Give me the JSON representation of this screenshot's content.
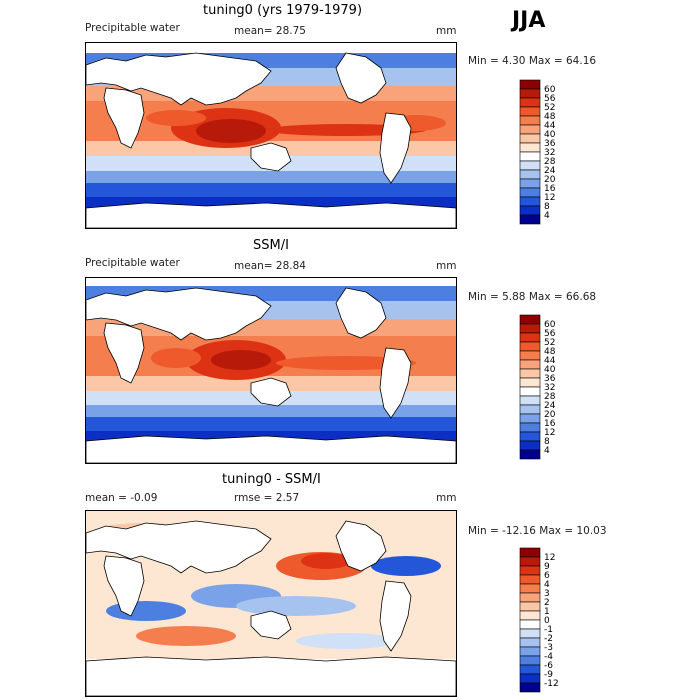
{
  "season": "JJA",
  "panels": [
    {
      "title": "tuning0 (yrs 1979-1979)",
      "left_text": "Precipitable water",
      "mid_text": "mean=  28.75",
      "units": "mm",
      "minmax": "Min =    4.30 Max =   64.16"
    },
    {
      "title": "SSM/I",
      "left_text": "Precipitable water",
      "mid_text": "mean=  28.84",
      "units": "mm",
      "minmax": "Min =    5.88 Max =   66.68"
    },
    {
      "title": "tuning0 - SSM/I",
      "left_text": "mean =   -0.09",
      "mid_text": "rmse =    2.57",
      "units": "mm",
      "minmax": "Min = -12.16 Max =   10.03"
    }
  ],
  "colorbars": {
    "pw": {
      "levels": [
        "60",
        "56",
        "52",
        "48",
        "44",
        "40",
        "36",
        "32",
        "28",
        "24",
        "20",
        "16",
        "12",
        "8",
        "4"
      ],
      "colors": [
        "#8b0000",
        "#b81a0a",
        "#dd3314",
        "#ee5a2b",
        "#f47e4e",
        "#f9a37a",
        "#fbc7a6",
        "#fde6d2",
        "#ffffff",
        "#d0e0f7",
        "#a6c3f0",
        "#7aa2e8",
        "#4d7fe0",
        "#2356d8",
        "#0b2fc4",
        "#00008f"
      ]
    },
    "diff": {
      "levels": [
        "12",
        "9",
        "6",
        "4",
        "3",
        "2",
        "1",
        "0",
        "-1",
        "-2",
        "-3",
        "-4",
        "-6",
        "-9",
        "-12"
      ],
      "colors": [
        "#8b0000",
        "#b81a0a",
        "#dd3314",
        "#ee5a2b",
        "#f47e4e",
        "#f9a37a",
        "#fbc7a6",
        "#fde6d2",
        "#ffffff",
        "#d0e0f7",
        "#a6c3f0",
        "#7aa2e8",
        "#4d7fe0",
        "#2356d8",
        "#0b2fc4",
        "#00008f"
      ]
    }
  }
}
